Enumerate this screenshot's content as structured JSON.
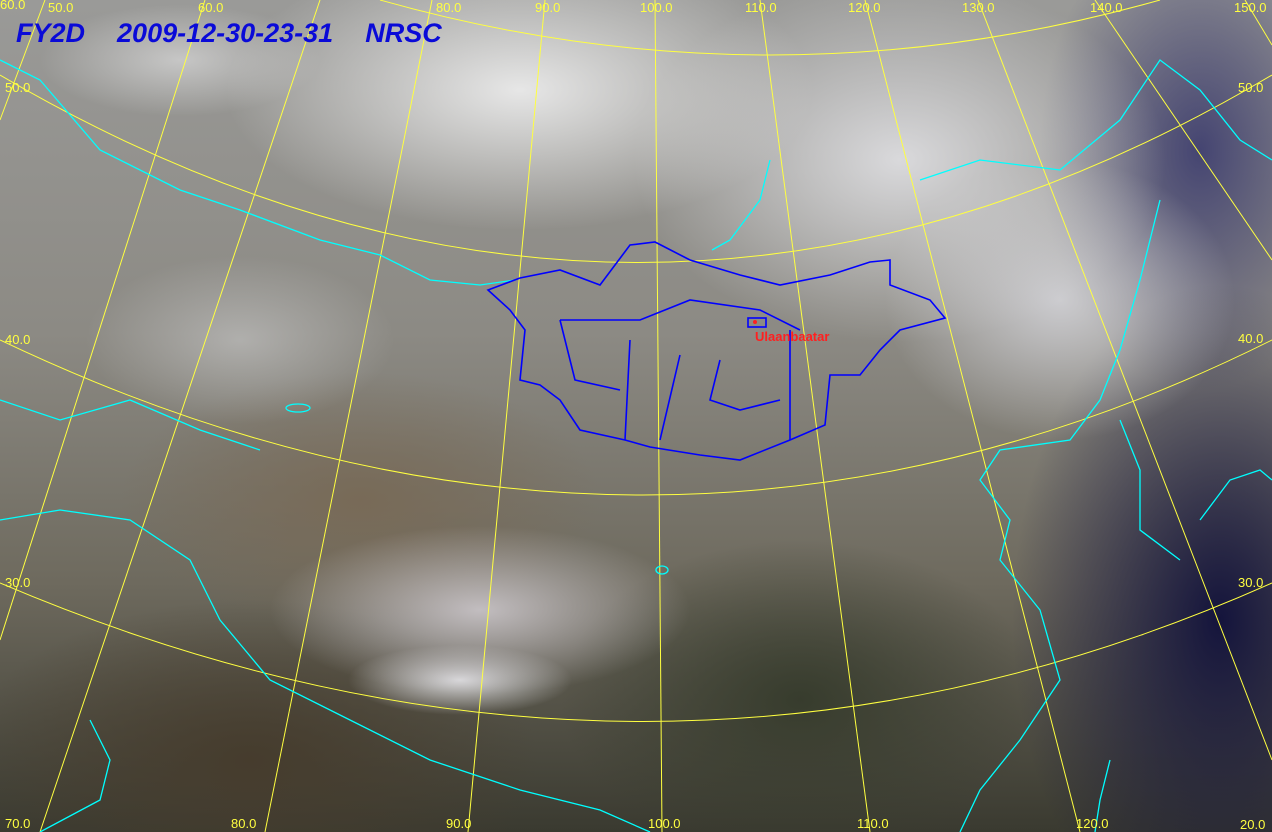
{
  "header": {
    "satellite": "FY2D",
    "datetime": "2009-12-30-23-31",
    "agency": "NRSC"
  },
  "city_label": "Ulaanbaatar",
  "grid_labels": {
    "top": [
      "60.0",
      "50.0",
      "60.0",
      "80.0",
      "90.0",
      "100.0",
      "110.0",
      "120.0",
      "130.0",
      "140.0",
      "150.0"
    ],
    "bottom": [
      "70.0",
      "80.0",
      "90.0",
      "100.0",
      "110.0",
      "120.0",
      "20.0"
    ],
    "left": [
      "50.0",
      "40.0",
      "30.0"
    ],
    "right": [
      "50.0",
      "40.0",
      "30.0"
    ]
  },
  "colors": {
    "graticule": "#ffff40",
    "coastline": "#00ffff",
    "mongolia_border": "#0000ff",
    "title": "#0a0ad8",
    "city": "#ff2020"
  }
}
